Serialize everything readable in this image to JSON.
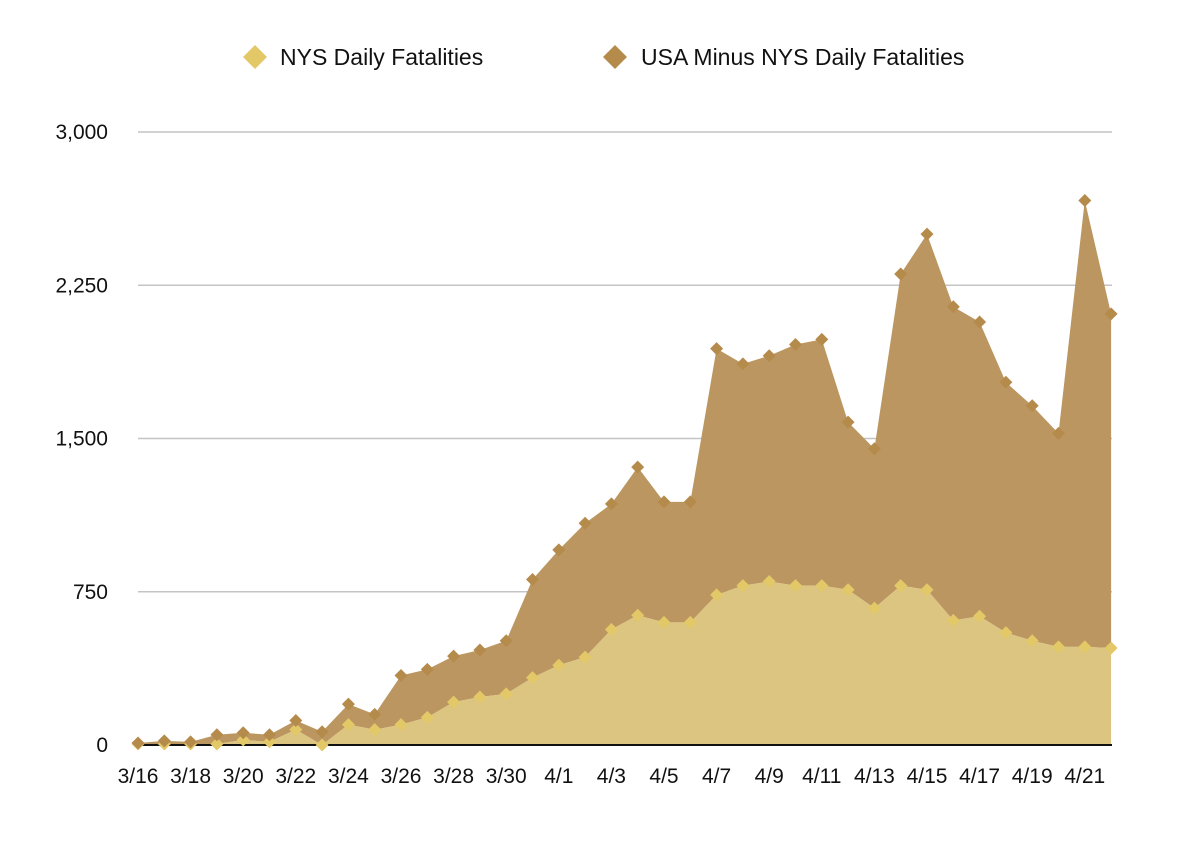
{
  "chart_data": {
    "type": "area",
    "stacked": true,
    "categories": [
      "3/16",
      "3/17",
      "3/18",
      "3/19",
      "3/20",
      "3/21",
      "3/22",
      "3/23",
      "3/24",
      "3/25",
      "3/26",
      "3/27",
      "3/28",
      "3/29",
      "3/30",
      "3/31",
      "4/1",
      "4/2",
      "4/3",
      "4/4",
      "4/5",
      "4/6",
      "4/7",
      "4/8",
      "4/9",
      "4/10",
      "4/11",
      "4/12",
      "4/13",
      "4/14",
      "4/15",
      "4/16",
      "4/17",
      "4/18",
      "4/19",
      "4/20",
      "4/21",
      "4/22"
    ],
    "x_tick_labels": [
      "3/16",
      "3/18",
      "3/20",
      "3/22",
      "3/24",
      "3/26",
      "3/28",
      "3/30",
      "4/1",
      "4/3",
      "4/5",
      "4/7",
      "4/9",
      "4/11",
      "4/13",
      "4/15",
      "4/17",
      "4/19",
      "4/21"
    ],
    "series": [
      {
        "name": "NYS Daily Fatalities",
        "color": "#dcc580",
        "marker_color": "#e3c868",
        "values": [
          5,
          5,
          5,
          5,
          25,
          15,
          75,
          0,
          100,
          75,
          100,
          135,
          210,
          235,
          250,
          330,
          390,
          430,
          565,
          635,
          600,
          600,
          735,
          780,
          800,
          780,
          780,
          760,
          670,
          780,
          760,
          610,
          630,
          550,
          510,
          480,
          480,
          475
        ]
      },
      {
        "name": "USA Minus NYS Daily Fatalities",
        "color": "#bc9660",
        "marker_color": "#b58b4c",
        "values": [
          5,
          15,
          10,
          45,
          35,
          35,
          45,
          65,
          100,
          75,
          240,
          235,
          225,
          230,
          260,
          480,
          565,
          655,
          615,
          725,
          590,
          590,
          1205,
          1085,
          1105,
          1180,
          1205,
          820,
          780,
          1525,
          1740,
          1535,
          1440,
          1225,
          1150,
          1045,
          2185,
          1635
        ]
      }
    ],
    "ylim": [
      0,
      3000
    ],
    "y_ticks": [
      0,
      750,
      1500,
      2250,
      3000
    ],
    "y_tick_labels": [
      "0",
      "750",
      "1,500",
      "2,250",
      "3,000"
    ],
    "grid": true,
    "legend_position": "top-center",
    "title": "",
    "xlabel": "",
    "ylabel": ""
  }
}
